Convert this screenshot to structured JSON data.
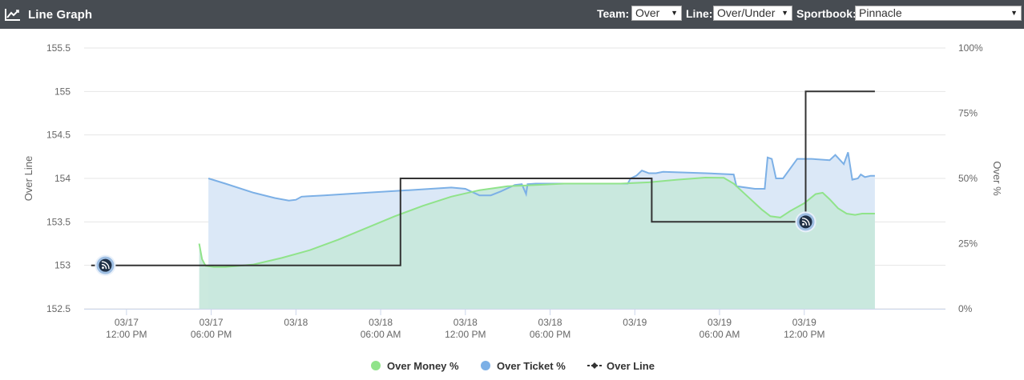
{
  "header": {
    "title": "Line Graph",
    "icon": "line-chart-icon",
    "team_label": "Team:",
    "team_value": "Over",
    "line_label": "Line:",
    "line_value": "Over/Under",
    "sportsbook_label": "Sportbook:",
    "sportsbook_value": "Pinnacle"
  },
  "colors": {
    "header_bg": "#474c52",
    "money": "#90e38a",
    "ticket": "#7cb0e6",
    "line": "#333333",
    "money_fill": "#c8e8dc",
    "ticket_fill": "#dbe8f7"
  },
  "chart_data": {
    "type": "line",
    "left_axis": {
      "label": "Over Line",
      "min": 152.5,
      "max": 155.5,
      "ticks": [
        "152.5",
        "153",
        "153.5",
        "154",
        "154.5",
        "155",
        "155.5"
      ]
    },
    "right_axis": {
      "label": "Over %",
      "min": 0,
      "max": 100,
      "ticks": [
        "0%",
        "25%",
        "50%",
        "75%",
        "100%"
      ]
    },
    "x_axis": {
      "unit": "hours since 03/17 09:00 AM",
      "min": 0,
      "max": 61,
      "ticks": [
        {
          "x": 3,
          "l1": "03/17",
          "l2": "12:00 PM"
        },
        {
          "x": 9,
          "l1": "03/17",
          "l2": "06:00 PM"
        },
        {
          "x": 15,
          "l1": "03/18",
          "l2": ""
        },
        {
          "x": 21,
          "l1": "03/18",
          "l2": "06:00 AM"
        },
        {
          "x": 27,
          "l1": "03/18",
          "l2": "12:00 PM"
        },
        {
          "x": 33,
          "l1": "03/18",
          "l2": "06:00 PM"
        },
        {
          "x": 39,
          "l1": "03/19",
          "l2": ""
        },
        {
          "x": 45,
          "l1": "03/19",
          "l2": "06:00 AM"
        },
        {
          "x": 51,
          "l1": "03/19",
          "l2": "12:00 PM"
        }
      ]
    },
    "series": [
      {
        "name": "Over Money %",
        "axis": "right",
        "points": [
          [
            8.15,
            25
          ],
          [
            8.35,
            19
          ],
          [
            8.6,
            16.5
          ],
          [
            9.2,
            16
          ],
          [
            10,
            16
          ],
          [
            12,
            17
          ],
          [
            14,
            19.5
          ],
          [
            16,
            22.5
          ],
          [
            18,
            26.5
          ],
          [
            20,
            31
          ],
          [
            22,
            35.5
          ],
          [
            24,
            39.5
          ],
          [
            26,
            43
          ],
          [
            28,
            45.5
          ],
          [
            30,
            47
          ],
          [
            32,
            47.5
          ],
          [
            34,
            48
          ],
          [
            36,
            48
          ],
          [
            38,
            48
          ],
          [
            40,
            48.5
          ],
          [
            42,
            49.5
          ],
          [
            44,
            50.3
          ],
          [
            45.3,
            50.2
          ],
          [
            46,
            48
          ],
          [
            47,
            43
          ],
          [
            48,
            38
          ],
          [
            48.6,
            35.5
          ],
          [
            49.3,
            35
          ],
          [
            50,
            37.5
          ],
          [
            51,
            40.5
          ],
          [
            51.8,
            44
          ],
          [
            52.3,
            44.5
          ],
          [
            52.8,
            42
          ],
          [
            53.4,
            38.5
          ],
          [
            54,
            36.5
          ],
          [
            54.6,
            36
          ],
          [
            55.1,
            36.5
          ],
          [
            56,
            36.5
          ]
        ]
      },
      {
        "name": "Over Ticket %",
        "axis": "right",
        "points": [
          [
            8.8,
            50
          ],
          [
            10,
            48
          ],
          [
            12,
            44.5
          ],
          [
            13.5,
            42.5
          ],
          [
            14.5,
            41.5
          ],
          [
            15,
            41.8
          ],
          [
            15.4,
            43
          ],
          [
            17,
            43.5
          ],
          [
            20,
            44.5
          ],
          [
            23,
            45.5
          ],
          [
            26,
            46.5
          ],
          [
            27,
            46
          ],
          [
            28,
            43.5
          ],
          [
            28.8,
            43.5
          ],
          [
            29.5,
            45
          ],
          [
            30.5,
            47.5
          ],
          [
            31,
            47.8
          ],
          [
            31.3,
            44
          ],
          [
            31.4,
            47.8
          ],
          [
            32,
            48
          ],
          [
            36,
            48
          ],
          [
            38.5,
            48
          ],
          [
            38.7,
            50
          ],
          [
            39.1,
            51
          ],
          [
            39.5,
            53
          ],
          [
            40,
            52
          ],
          [
            40.5,
            52
          ],
          [
            41,
            52.5
          ],
          [
            44,
            52
          ],
          [
            46,
            51.5
          ],
          [
            46.2,
            47
          ],
          [
            47.5,
            46
          ],
          [
            48.2,
            46
          ],
          [
            48.4,
            58
          ],
          [
            48.7,
            57.5
          ],
          [
            49,
            50
          ],
          [
            49.5,
            50
          ],
          [
            50.5,
            57.5
          ],
          [
            51.5,
            57.5
          ],
          [
            52.8,
            57
          ],
          [
            53.2,
            59
          ],
          [
            53.8,
            55.5
          ],
          [
            54.1,
            60
          ],
          [
            54.4,
            49.5
          ],
          [
            54.8,
            50
          ],
          [
            55,
            51.5
          ],
          [
            55.3,
            50.5
          ],
          [
            55.7,
            51
          ],
          [
            56,
            51
          ]
        ]
      },
      {
        "name": "Over Line",
        "axis": "left",
        "points": [
          [
            0.5,
            153
          ],
          [
            22.4,
            153
          ],
          [
            22.4,
            154
          ],
          [
            40.2,
            154
          ],
          [
            40.2,
            153.5
          ],
          [
            51.1,
            153.5
          ],
          [
            51.1,
            155
          ],
          [
            56,
            155
          ]
        ],
        "markers": [
          [
            1.5,
            153
          ],
          [
            51.1,
            153.5
          ]
        ]
      }
    ],
    "legend": [
      "Over Money %",
      "Over Ticket %",
      "Over Line"
    ]
  }
}
